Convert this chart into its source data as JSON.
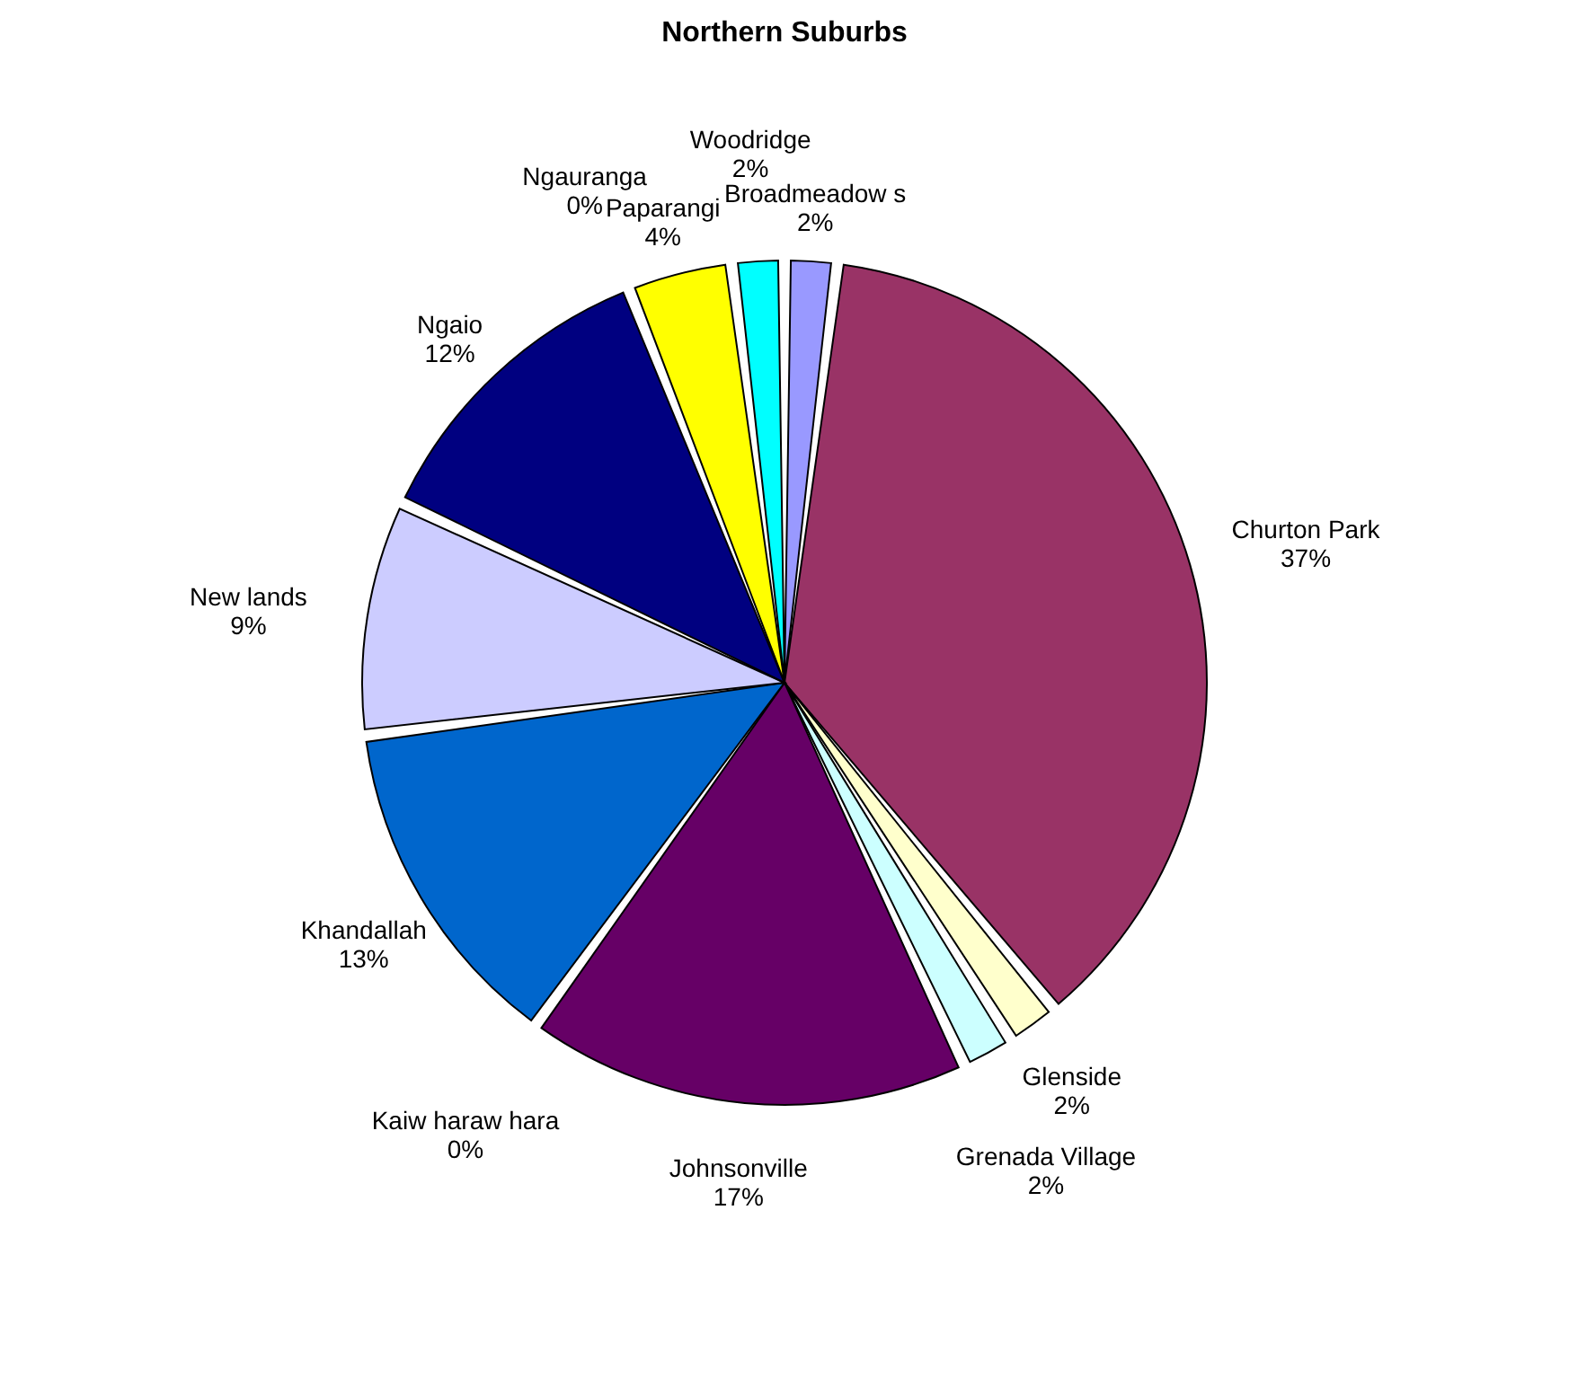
{
  "chart_data": {
    "type": "pie",
    "title": "Northern Suburbs",
    "categories": [
      "Broadmeadow s",
      "Churton Park",
      "Glenside",
      "Grenada Village",
      "Johnsonville",
      "Kaiw haraw hara",
      "Khandallah",
      "New lands",
      "Ngaio",
      "Ngauranga",
      "Paparangi",
      "Woodridge"
    ],
    "values": [
      2,
      37,
      2,
      2,
      17,
      0,
      13,
      9,
      12,
      0,
      4,
      2
    ],
    "value_labels": [
      "2%",
      "37%",
      "2%",
      "2%",
      "17%",
      "0%",
      "13%",
      "9%",
      "12%",
      "0%",
      "4%",
      "2%"
    ],
    "colors": [
      "#9999ff",
      "#993366",
      "#ffffcc",
      "#ccffff",
      "#660066",
      "#ff8080",
      "#0066cc",
      "#ccccff",
      "#000080",
      "#ff00ff",
      "#ffff00",
      "#00ffff"
    ],
    "legend": false
  }
}
